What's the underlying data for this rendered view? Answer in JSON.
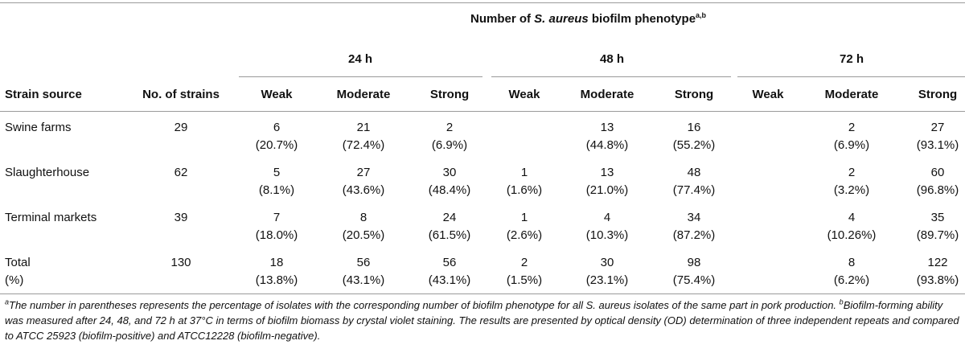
{
  "table": {
    "title_prefix": "Number of ",
    "title_italic": "S. aureus",
    "title_suffix": " biofilm phenotype",
    "title_sup": "a,b",
    "time_groups": [
      "24 h",
      "48 h",
      "72 h"
    ],
    "headers": {
      "strain_source": "Strain source",
      "no_strains": "No. of strains",
      "weak": "Weak",
      "moderate": "Moderate",
      "strong": "Strong"
    },
    "rows": [
      {
        "source": "Swine farms",
        "n": "29",
        "counts": [
          "6",
          "21",
          "2",
          "",
          "13",
          "16",
          "",
          "2",
          "27"
        ],
        "pcts": [
          "(20.7%)",
          "(72.4%)",
          "(6.9%)",
          "",
          "(44.8%)",
          "(55.2%)",
          "",
          "(6.9%)",
          "(93.1%)"
        ]
      },
      {
        "source": "Slaughterhouse",
        "n": "62",
        "counts": [
          "5",
          "27",
          "30",
          "1",
          "13",
          "48",
          "",
          "2",
          "60"
        ],
        "pcts": [
          "(8.1%)",
          "(43.6%)",
          "(48.4%)",
          "(1.6%)",
          "(21.0%)",
          "(77.4%)",
          "",
          "(3.2%)",
          "(96.8%)"
        ]
      },
      {
        "source": "Terminal markets",
        "n": "39",
        "counts": [
          "7",
          "8",
          "24",
          "1",
          "4",
          "34",
          "",
          "4",
          "35"
        ],
        "pcts": [
          "(18.0%)",
          "(20.5%)",
          "(61.5%)",
          "(2.6%)",
          "(10.3%)",
          "(87.2%)",
          "",
          "(10.26%)",
          "(89.7%)"
        ]
      },
      {
        "source": "Total",
        "source2": "(%)",
        "n": "130",
        "counts": [
          "18",
          "56",
          "56",
          "2",
          "30",
          "98",
          "",
          "8",
          "122"
        ],
        "pcts": [
          "(13.8%)",
          "(43.1%)",
          "(43.1%)",
          "(1.5%)",
          "(23.1%)",
          "(75.4%)",
          "",
          "(6.2%)",
          "(93.8%)"
        ]
      }
    ]
  },
  "footnotes": {
    "a_sup": "a",
    "a_text": "The number in parentheses represents the percentage of isolates with the corresponding number of biofilm phenotype for all S. aureus isolates of the same part in pork production.",
    "b_sup": "b",
    "b_text": "Biofilm-forming ability was measured after 24, 48, and 72 h at 37°C in terms of biofilm biomass by crystal violet staining. The results are presented by optical density (OD) determination of three independent repeats and compared to ATCC 25923 (biofilm-positive) and ATCC12228 (biofilm-negative)."
  }
}
